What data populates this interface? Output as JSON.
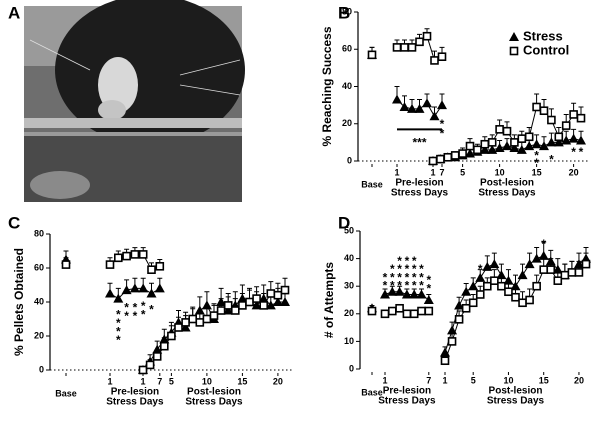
{
  "photo_panel": {
    "label": "A"
  },
  "chart_data": [
    {
      "type": "line",
      "panel": "B",
      "ylabel": "% Reaching Success",
      "categories": [
        "Base",
        "1",
        null,
        null,
        null,
        null,
        null,
        "7",
        "1",
        null,
        null,
        null,
        "5",
        null,
        null,
        null,
        null,
        "10",
        null,
        null,
        null,
        null,
        "15",
        null,
        null,
        null,
        null,
        "20",
        null
      ],
      "x_group_labels": [
        [
          "Pre-lesion",
          "Stress Days"
        ],
        [
          "Post-lesion",
          "Stress Days"
        ]
      ],
      "ylim": [
        0,
        80
      ],
      "yticks": [
        0,
        20,
        40,
        60,
        80
      ],
      "zero_line": true,
      "legend": "upper right",
      "series": [
        {
          "name": "Stress",
          "marker": "triangle",
          "color": "#000000",
          "values": [
            57,
            33,
            29,
            28,
            28,
            31,
            24,
            30,
            0,
            1,
            2,
            2,
            3,
            4,
            5,
            6,
            6,
            7,
            8,
            7,
            6,
            8,
            9,
            8,
            10,
            10,
            11,
            12,
            11
          ],
          "errors": [
            4,
            7,
            6,
            5,
            5,
            5,
            5,
            6,
            1,
            2,
            2,
            2,
            2,
            3,
            3,
            3,
            4,
            4,
            4,
            4,
            4,
            5,
            5,
            5,
            5,
            5,
            5,
            5,
            5
          ]
        },
        {
          "name": "Control",
          "marker": "square",
          "color": "#000000",
          "values": [
            57,
            61,
            61,
            61,
            64,
            67,
            54,
            56,
            0,
            1,
            2,
            3,
            4,
            8,
            6,
            9,
            10,
            17,
            16,
            10,
            12,
            13,
            29,
            27,
            22,
            13,
            19,
            25,
            23
          ],
          "errors": [
            4,
            4,
            4,
            4,
            4,
            4,
            5,
            5,
            1,
            2,
            2,
            2,
            3,
            4,
            3,
            4,
            4,
            5,
            5,
            4,
            4,
            5,
            7,
            6,
            6,
            5,
            6,
            6,
            6
          ]
        }
      ],
      "annotations": [
        {
          "text": "***",
          "x": 4,
          "y": 11
        },
        {
          "text": "*",
          "x": 7,
          "y": 21
        },
        {
          "text": "*",
          "x": 7,
          "y": 16
        },
        {
          "text": "*",
          "x": 22,
          "y": 4
        },
        {
          "text": "*",
          "x": 22,
          "y": 0
        },
        {
          "text": "*",
          "x": 24,
          "y": 2
        },
        {
          "text": "*",
          "x": 27,
          "y": 6
        },
        {
          "text": "*",
          "x": 28,
          "y": 6
        }
      ]
    },
    {
      "type": "line",
      "panel": "C",
      "ylabel": "% Pellets Obtained",
      "categories": [
        "Base",
        "1",
        null,
        null,
        null,
        null,
        null,
        "7",
        "1",
        null,
        null,
        null,
        "5",
        null,
        null,
        null,
        null,
        "10",
        null,
        null,
        null,
        null,
        "15",
        null,
        null,
        null,
        null,
        "20",
        null
      ],
      "x_group_labels": [
        [
          "Pre-lesion",
          "Stress Days"
        ],
        [
          "Post-lesion",
          "Stress Days"
        ]
      ],
      "ylim": [
        0,
        80
      ],
      "yticks": [
        0,
        20,
        40,
        60,
        80
      ],
      "zero_line": true,
      "series": [
        {
          "name": "Stress",
          "marker": "triangle",
          "color": "#000000",
          "values": [
            65,
            45,
            42,
            47,
            48,
            48,
            45,
            48,
            0,
            5,
            12,
            18,
            22,
            28,
            25,
            30,
            35,
            38,
            30,
            40,
            35,
            38,
            42,
            40,
            38,
            42,
            38,
            40,
            40
          ],
          "errors": [
            5,
            6,
            6,
            6,
            6,
            6,
            6,
            6,
            2,
            4,
            5,
            6,
            6,
            7,
            7,
            7,
            8,
            8,
            8,
            8,
            8,
            8,
            8,
            8,
            8,
            8,
            8,
            8,
            8
          ]
        },
        {
          "name": "Control",
          "marker": "square",
          "color": "#000000",
          "values": [
            62,
            62,
            66,
            67,
            68,
            68,
            59,
            61,
            0,
            3,
            8,
            14,
            20,
            25,
            28,
            30,
            28,
            30,
            32,
            35,
            38,
            35,
            38,
            40,
            42,
            38,
            45,
            44,
            47
          ],
          "errors": [
            4,
            4,
            4,
            4,
            4,
            4,
            4,
            4,
            1,
            3,
            4,
            5,
            6,
            6,
            6,
            6,
            7,
            7,
            7,
            7,
            7,
            7,
            7,
            7,
            7,
            7,
            7,
            7,
            7
          ]
        }
      ],
      "annotations": [
        {
          "text": "*",
          "x": 2,
          "y": 34
        },
        {
          "text": "*",
          "x": 2,
          "y": 29
        },
        {
          "text": "*",
          "x": 2,
          "y": 24
        },
        {
          "text": "*",
          "x": 2,
          "y": 19
        },
        {
          "text": "*",
          "x": 3,
          "y": 38
        },
        {
          "text": "*",
          "x": 3,
          "y": 33
        },
        {
          "text": "*",
          "x": 4,
          "y": 38
        },
        {
          "text": "*",
          "x": 4,
          "y": 33
        },
        {
          "text": "*",
          "x": 5,
          "y": 39
        },
        {
          "text": "*",
          "x": 5,
          "y": 34
        },
        {
          "text": "*",
          "x": 6,
          "y": 37
        }
      ]
    },
    {
      "type": "line",
      "panel": "D",
      "ylabel": "# of Attempts",
      "categories": [
        "Base",
        "1",
        null,
        null,
        null,
        null,
        null,
        "7",
        "1",
        null,
        null,
        null,
        "5",
        null,
        null,
        null,
        null,
        "10",
        null,
        null,
        null,
        null,
        "15",
        null,
        null,
        null,
        null,
        "20",
        null
      ],
      "x_group_labels": [
        [
          "Pre-lesion",
          "Stress Days"
        ],
        [
          "Post-lesion",
          "Stress Days"
        ]
      ],
      "ylim": [
        0,
        50
      ],
      "yticks": [
        0,
        10,
        20,
        30,
        40,
        50
      ],
      "series": [
        {
          "name": "Stress",
          "marker": "triangle",
          "color": "#000000",
          "values": [
            22,
            27,
            28,
            28,
            27,
            27,
            27,
            25,
            6,
            14,
            23,
            28,
            30,
            33,
            37,
            38,
            34,
            32,
            30,
            34,
            38,
            40,
            41,
            39,
            36,
            34,
            35,
            38,
            40
          ],
          "errors": [
            1,
            2,
            2,
            2,
            2,
            2,
            2,
            2,
            2,
            3,
            3,
            3,
            3,
            3,
            4,
            4,
            4,
            4,
            4,
            4,
            4,
            4,
            5,
            4,
            4,
            4,
            4,
            4,
            4
          ]
        },
        {
          "name": "Control",
          "marker": "square",
          "color": "#000000",
          "values": [
            21,
            20,
            21,
            22,
            20,
            20,
            21,
            21,
            3,
            10,
            18,
            22,
            24,
            27,
            30,
            32,
            30,
            28,
            26,
            24,
            25,
            30,
            36,
            36,
            32,
            34,
            35,
            35,
            38
          ],
          "errors": [
            1,
            1,
            1,
            1,
            1,
            1,
            1,
            1,
            2,
            3,
            3,
            3,
            3,
            3,
            3,
            4,
            4,
            4,
            4,
            4,
            4,
            4,
            4,
            4,
            4,
            4,
            4,
            4,
            4
          ]
        }
      ],
      "annotations": [
        {
          "text": "*",
          "x": 1,
          "y": 31
        },
        {
          "text": "*",
          "x": 1,
          "y": 34
        },
        {
          "text": "*",
          "x": 2,
          "y": 31
        },
        {
          "text": "*",
          "x": 2,
          "y": 34
        },
        {
          "text": "*",
          "x": 2,
          "y": 37
        },
        {
          "text": "*",
          "x": 3,
          "y": 31
        },
        {
          "text": "*",
          "x": 3,
          "y": 34
        },
        {
          "text": "*",
          "x": 3,
          "y": 37
        },
        {
          "text": "*",
          "x": 3,
          "y": 40
        },
        {
          "text": "*",
          "x": 4,
          "y": 31
        },
        {
          "text": "*",
          "x": 4,
          "y": 34
        },
        {
          "text": "*",
          "x": 4,
          "y": 37
        },
        {
          "text": "*",
          "x": 4,
          "y": 40
        },
        {
          "text": "*",
          "x": 5,
          "y": 31
        },
        {
          "text": "*",
          "x": 5,
          "y": 34
        },
        {
          "text": "*",
          "x": 5,
          "y": 37
        },
        {
          "text": "*",
          "x": 5,
          "y": 40
        },
        {
          "text": "*",
          "x": 6,
          "y": 31
        },
        {
          "text": "*",
          "x": 6,
          "y": 34
        },
        {
          "text": "*",
          "x": 6,
          "y": 37
        },
        {
          "text": "*",
          "x": 7,
          "y": 30
        },
        {
          "text": "*",
          "x": 7,
          "y": 33
        },
        {
          "text": "*",
          "x": 13,
          "y": 37
        },
        {
          "text": "*",
          "x": 22,
          "y": 46
        }
      ]
    }
  ]
}
